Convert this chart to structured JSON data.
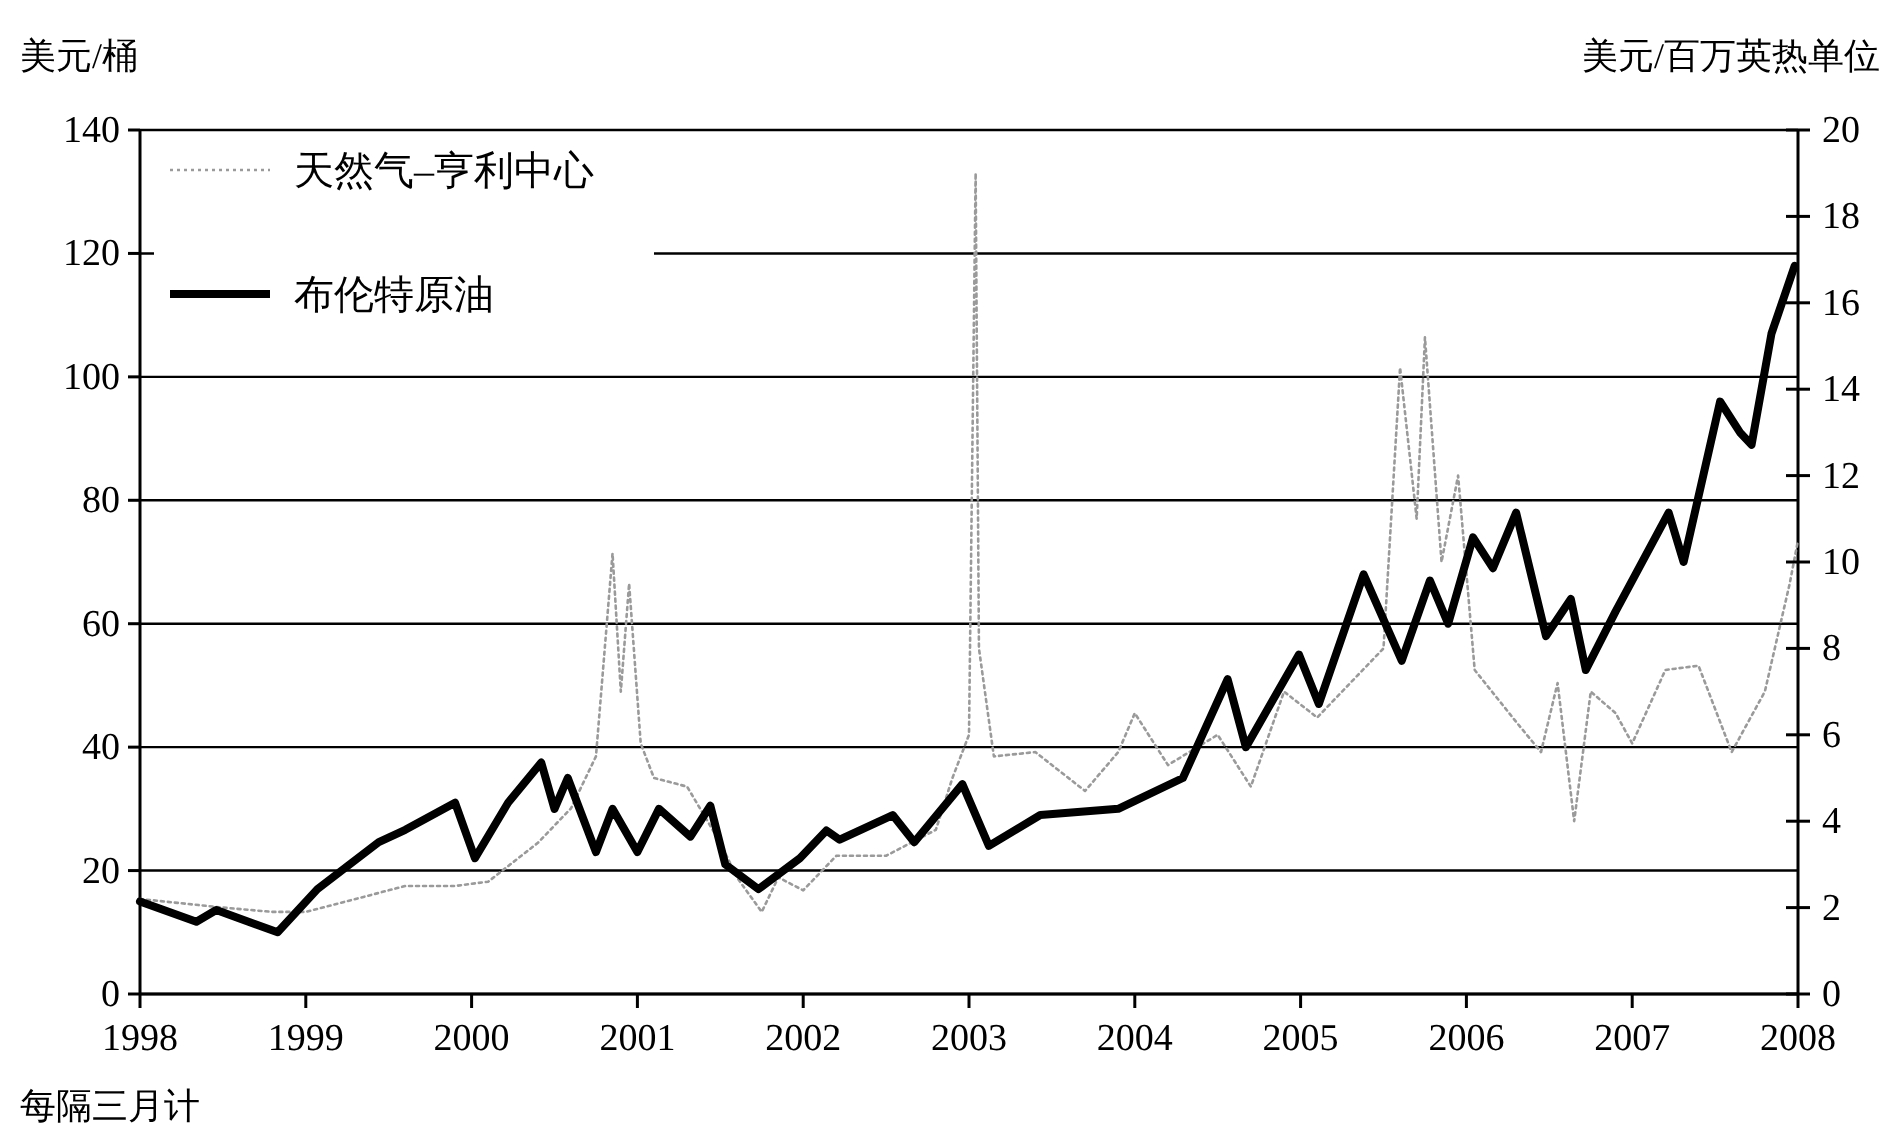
{
  "chart_data": {
    "type": "line",
    "ylabel": "美元/桶",
    "y2label": "美元/百万英热单位",
    "xlabel": "每隔三月计",
    "xlim": [
      1998,
      2008
    ],
    "xticks": [
      1998,
      1999,
      2000,
      2001,
      2002,
      2003,
      2004,
      2005,
      2006,
      2007,
      2008
    ],
    "ylim": [
      0,
      140
    ],
    "yticks": [
      0,
      20,
      40,
      60,
      80,
      100,
      120,
      140
    ],
    "y2lim": [
      0,
      20
    ],
    "y2ticks": [
      0,
      2,
      4,
      6,
      8,
      10,
      12,
      14,
      16,
      18,
      20
    ],
    "grid": "y",
    "legend": "top left",
    "series": [
      {
        "name": "天然气–亨利中心",
        "color": "#9a9a9a",
        "axis": "y2",
        "line_style": "dotted",
        "x": [
          1998.0,
          1998.5,
          1998.8,
          1999.0,
          1999.3,
          1999.6,
          1999.9,
          2000.1,
          2000.4,
          2000.6,
          2000.75,
          2000.85,
          2000.9,
          2000.95,
          2001.02,
          2001.1,
          2001.3,
          2001.5,
          2001.6,
          2001.75,
          2001.85,
          2002.0,
          2002.2,
          2002.5,
          2002.8,
          2002.9,
          2003.0,
          2003.04,
          2003.06,
          2003.15,
          2003.4,
          2003.7,
          2003.9,
          2004.0,
          2004.2,
          2004.5,
          2004.7,
          2004.9,
          2005.1,
          2005.3,
          2005.5,
          2005.6,
          2005.7,
          2005.75,
          2005.85,
          2005.95,
          2006.05,
          2006.3,
          2006.45,
          2006.55,
          2006.65,
          2006.75,
          2006.9,
          2007.0,
          2007.2,
          2007.4,
          2007.6,
          2007.8,
          2007.95,
          2008.0
        ],
        "values": [
          2.2,
          2.0,
          1.9,
          1.9,
          2.2,
          2.5,
          2.5,
          2.6,
          3.5,
          4.3,
          5.5,
          10.2,
          7,
          9.5,
          5.8,
          5.0,
          4.8,
          3.5,
          2.7,
          1.9,
          2.7,
          2.4,
          3.2,
          3.2,
          3.8,
          5.0,
          6.0,
          19,
          8,
          5.5,
          5.6,
          4.7,
          5.6,
          6.5,
          5.3,
          6.0,
          4.8,
          7.0,
          6.4,
          7.2,
          8.0,
          14.5,
          11,
          15.2,
          10,
          12,
          7.5,
          6.3,
          5.6,
          7.2,
          4.0,
          7.0,
          6.5,
          5.8,
          7.5,
          7.6,
          5.6,
          7.0,
          9.5,
          10.5
        ]
      },
      {
        "name": "布伦特原油",
        "color": "#000000",
        "axis": "y",
        "line_style": "solid",
        "x": [
          1998.0,
          1998.34,
          1998.46,
          1998.83,
          1999.07,
          1999.44,
          1999.6,
          1999.9,
          2000.02,
          2000.22,
          2000.42,
          2000.5,
          2000.58,
          2000.75,
          2000.85,
          2001.0,
          2001.13,
          2001.32,
          2001.44,
          2001.53,
          2001.73,
          2001.98,
          2002.14,
          2002.22,
          2002.54,
          2002.67,
          2002.96,
          2003.12,
          2003.43,
          2003.9,
          2004.29,
          2004.56,
          2004.67,
          2004.99,
          2005.11,
          2005.38,
          2005.61,
          2005.78,
          2005.89,
          2006.04,
          2006.16,
          2006.3,
          2006.48,
          2006.63,
          2006.72,
          2006.9,
          2007.02,
          2007.22,
          2007.31,
          2007.53,
          2007.65,
          2007.72,
          2007.84,
          2007.98
        ],
        "values": [
          15,
          11.7,
          13.6,
          10,
          17,
          24.6,
          26.6,
          31,
          22,
          31,
          37.5,
          30,
          35,
          23,
          30,
          23,
          30,
          25.5,
          30.5,
          21,
          17,
          22,
          26.5,
          25,
          29,
          24.6,
          34,
          24,
          29,
          30,
          35,
          51,
          40,
          55,
          47,
          68,
          54,
          67,
          60,
          74,
          69,
          78,
          58,
          64,
          52.5,
          62,
          68,
          78,
          70,
          96,
          91,
          89,
          107,
          118
        ]
      }
    ]
  }
}
